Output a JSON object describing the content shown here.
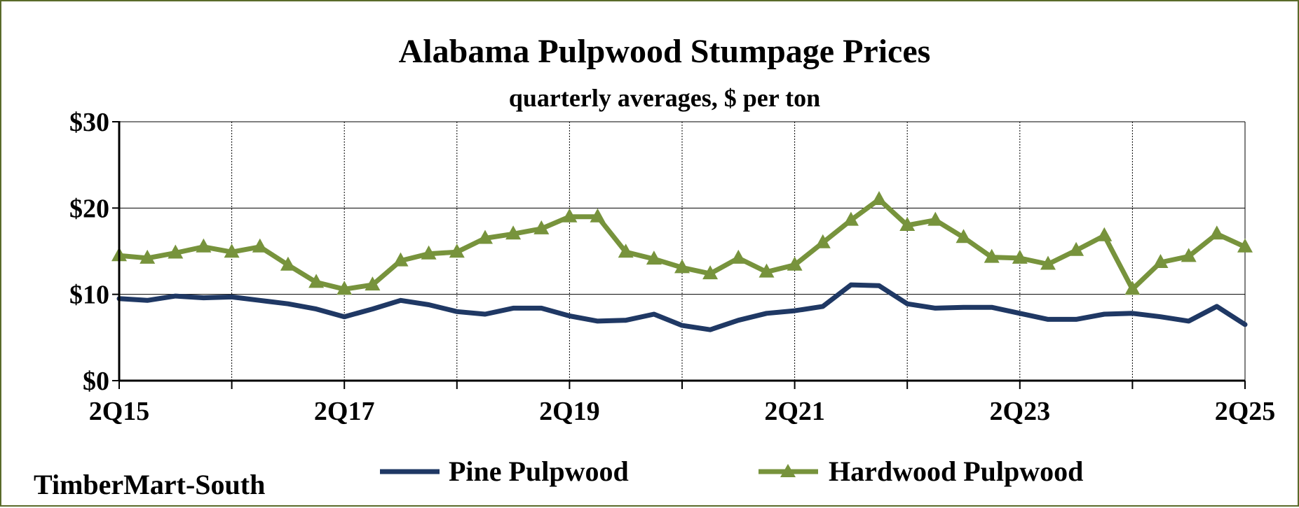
{
  "chart_data": {
    "type": "line",
    "title": "Alabama Pulpwood Stumpage Prices",
    "subtitle": "quarterly averages, $ per ton",
    "source": "TimberMart-South",
    "ylim": [
      0,
      30
    ],
    "y_ticks": [
      "$0",
      "$10",
      "$20",
      "$30"
    ],
    "x_tick_labels": [
      "2Q15",
      "2Q17",
      "2Q19",
      "2Q21",
      "2Q23",
      "2Q25"
    ],
    "grid": true,
    "legend_position": "bottom",
    "x": [
      "2Q15",
      "3Q15",
      "4Q15",
      "1Q16",
      "2Q16",
      "3Q16",
      "4Q16",
      "1Q17",
      "2Q17",
      "3Q17",
      "4Q17",
      "1Q18",
      "2Q18",
      "3Q18",
      "4Q18",
      "1Q19",
      "2Q19",
      "3Q19",
      "4Q19",
      "1Q20",
      "2Q20",
      "3Q20",
      "4Q20",
      "1Q21",
      "2Q21",
      "3Q21",
      "4Q21",
      "1Q22",
      "2Q22",
      "3Q22",
      "4Q22",
      "1Q23",
      "2Q23",
      "3Q23",
      "4Q23",
      "1Q24",
      "2Q24",
      "3Q24",
      "4Q24",
      "1Q25",
      "2Q25"
    ],
    "series": [
      {
        "name": "Pine Pulpwood",
        "color": "#1f3864",
        "marker": "none",
        "values": [
          9.5,
          9.3,
          9.8,
          9.6,
          9.7,
          9.3,
          8.9,
          8.3,
          7.4,
          8.3,
          9.3,
          8.8,
          8.0,
          7.7,
          8.4,
          8.4,
          7.5,
          6.9,
          7.0,
          7.7,
          6.4,
          5.9,
          7.0,
          7.8,
          8.1,
          8.6,
          11.1,
          11.0,
          8.9,
          8.4,
          8.5,
          8.5,
          7.8,
          7.1,
          7.1,
          7.7,
          7.8,
          7.4,
          6.9,
          8.6,
          6.5
        ]
      },
      {
        "name": "Hardwood Pulpwood",
        "color": "#77933c",
        "marker": "triangle",
        "values": [
          14.5,
          14.2,
          14.8,
          15.5,
          14.9,
          15.5,
          13.4,
          11.4,
          10.6,
          11.1,
          13.9,
          14.7,
          14.9,
          16.5,
          17.0,
          17.6,
          19.0,
          19.0,
          14.9,
          14.1,
          13.1,
          12.4,
          14.2,
          12.6,
          13.4,
          16.0,
          18.6,
          21.0,
          18.0,
          18.6,
          16.6,
          14.3,
          14.2,
          13.5,
          15.1,
          16.8,
          10.6,
          13.7,
          14.4,
          17.0,
          15.5
        ]
      }
    ]
  }
}
